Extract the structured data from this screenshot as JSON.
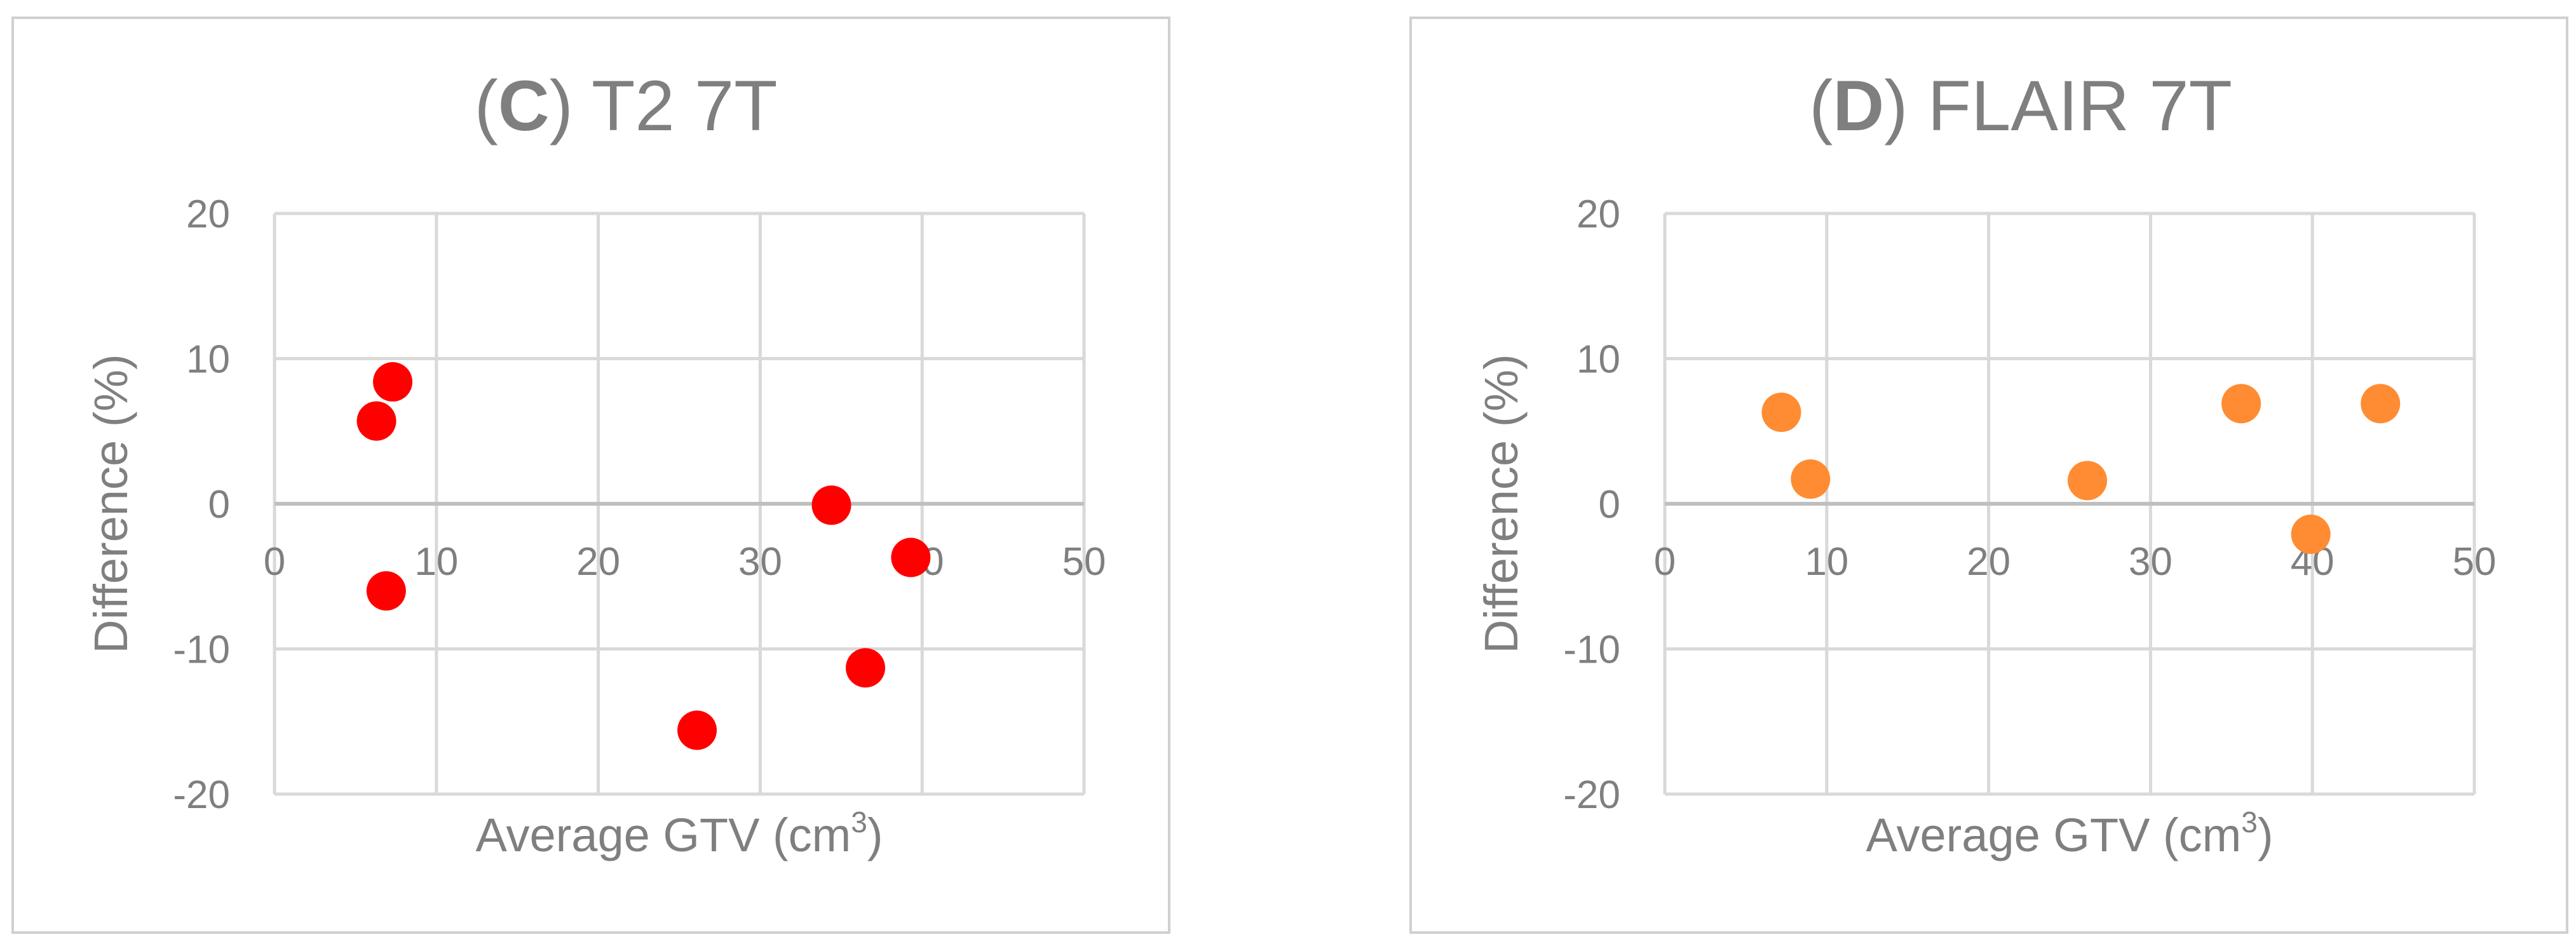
{
  "chart_data": [
    {
      "type": "scatter",
      "title": "(C) T2 7T",
      "title_parts": {
        "open": "(",
        "letter": "C",
        "rest": ") T2 7T"
      },
      "xlabel": "Average GTV (cm",
      "xlabel_sup": "3",
      "xlabel_close": ")",
      "ylabel": "Difference (%)",
      "xlim": [
        0,
        50
      ],
      "ylim": [
        -20,
        20
      ],
      "xticks": [
        0,
        10,
        20,
        30,
        40,
        50
      ],
      "yticks": [
        20,
        10,
        0,
        -10,
        -20
      ],
      "grid": true,
      "legend": "none",
      "series": [
        {
          "color": "#ff0000",
          "points": [
            {
              "x": 7.3,
              "y": 8.4
            },
            {
              "x": 6.3,
              "y": 5.7
            },
            {
              "x": 6.9,
              "y": -6.0
            },
            {
              "x": 26.1,
              "y": -15.6
            },
            {
              "x": 34.4,
              "y": -0.1
            },
            {
              "x": 36.5,
              "y": -11.3
            },
            {
              "x": 39.3,
              "y": -3.7
            }
          ]
        }
      ]
    },
    {
      "type": "scatter",
      "title": "(D) FLAIR 7T",
      "title_parts": {
        "open": "(",
        "letter": "D",
        "rest": ") FLAIR 7T"
      },
      "xlabel": "Average GTV (cm",
      "xlabel_sup": "3",
      "xlabel_close": ")",
      "ylabel": "Difference (%)",
      "xlim": [
        0,
        50
      ],
      "ylim": [
        -20,
        20
      ],
      "xticks": [
        0,
        10,
        20,
        30,
        40,
        50
      ],
      "yticks": [
        20,
        10,
        0,
        -10,
        -20
      ],
      "grid": true,
      "legend": "none",
      "series": [
        {
          "color": "#ff8c32",
          "points": [
            {
              "x": 7.2,
              "y": 6.3
            },
            {
              "x": 9.0,
              "y": 1.7
            },
            {
              "x": 26.1,
              "y": 1.6
            },
            {
              "x": 35.6,
              "y": 6.9
            },
            {
              "x": 39.9,
              "y": -2.1
            },
            {
              "x": 44.2,
              "y": 6.9
            }
          ]
        }
      ]
    }
  ]
}
